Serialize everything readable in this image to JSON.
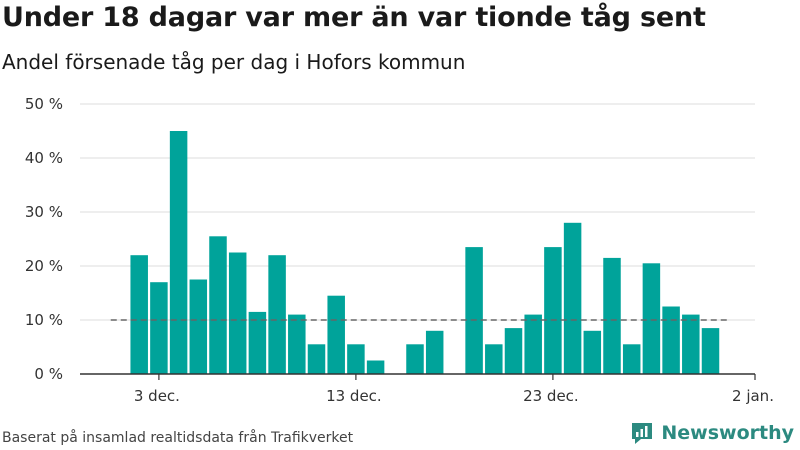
{
  "title": "Under 18 dagar var mer än var tionde tåg sent",
  "subtitle": "Andel försenade tåg per dag i Hofors kommun",
  "source": "Baserat på insamlad realtidsdata från Trafikverket",
  "brand": {
    "name": "Newsworthy",
    "icon": "newsworthy-logo-icon"
  },
  "colors": {
    "bar": "#00a39a",
    "grid": "#dcdcdc",
    "reference_line": "#666666",
    "brand": "#2c8a80"
  },
  "chart_data": {
    "type": "bar",
    "categories": [
      "1 dec.",
      "2 dec.",
      "3 dec.",
      "4 dec.",
      "5 dec.",
      "6 dec.",
      "7 dec.",
      "8 dec.",
      "9 dec.",
      "10 dec.",
      "11 dec.",
      "12 dec.",
      "13 dec.",
      "14 dec.",
      "15 dec.",
      "16 dec.",
      "17 dec.",
      "18 dec.",
      "19 dec.",
      "20 dec.",
      "21 dec.",
      "22 dec.",
      "23 dec.",
      "24 dec.",
      "25 dec.",
      "26 dec.",
      "27 dec.",
      "28 dec.",
      "29 dec.",
      "30 dec.",
      "31 dec.",
      "1 jan."
    ],
    "values": [
      null,
      22,
      17,
      45,
      17.5,
      25.5,
      22.5,
      11.5,
      22,
      11,
      5.5,
      14.5,
      5.5,
      2.5,
      null,
      5.5,
      8,
      null,
      23.5,
      5.5,
      8.5,
      11,
      23.5,
      28,
      8,
      21.5,
      5.5,
      20.5,
      12.5,
      11,
      8.5,
      null
    ],
    "x_ticks": [
      {
        "label": "3 dec.",
        "value": "3 dec."
      },
      {
        "label": "13 dec.",
        "value": "13 dec."
      },
      {
        "label": "23 dec.",
        "value": "23 dec."
      },
      {
        "label": "2 jan.",
        "value": "2 jan."
      }
    ],
    "y_ticks": [
      0,
      10,
      20,
      30,
      40,
      50
    ],
    "y_tick_labels": [
      "0 %",
      "10 %",
      "20 %",
      "30 %",
      "40 %",
      "50 %"
    ],
    "ylim": [
      0,
      50
    ],
    "reference_line": 10,
    "grid": true
  }
}
